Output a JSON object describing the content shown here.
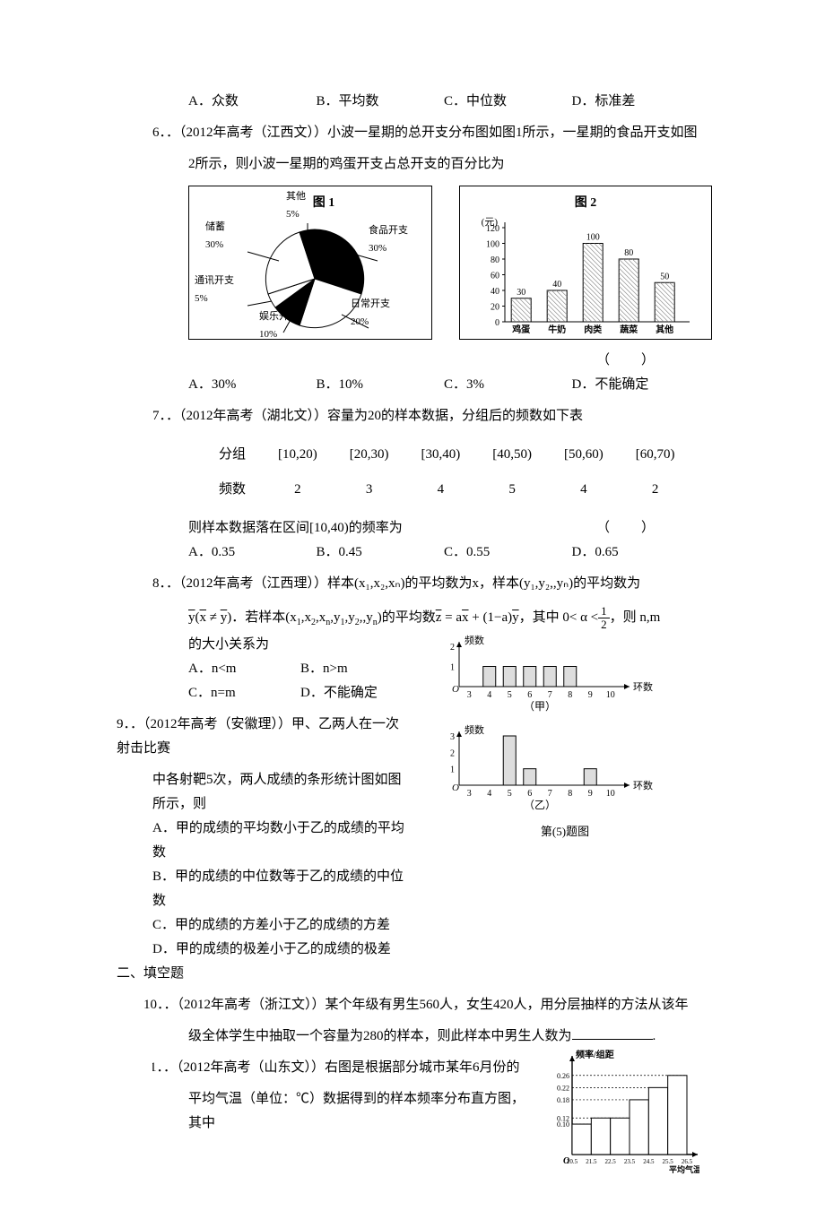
{
  "q5_opts": {
    "A": "A．众数",
    "B": "B．平均数",
    "C": "C．中位数",
    "D": "D．标准差"
  },
  "q6": {
    "num": "6．",
    "src": "．（2012年高考（江西文））小波一星期的总开支分布图如图1所示，一星期的食品开支如图",
    "line2": "2所示，则小波一星期的鸡蛋开支占总开支的百分比为",
    "pie": {
      "title": "图 1",
      "labels": {
        "储蓄": "储蓄\n30%",
        "其他": "其他\n5%",
        "食品": "食品开支\n30%",
        "日常": "日常开支\n20%",
        "娱乐": "娱乐开支\n10%",
        "通讯": "通讯开支\n5%"
      },
      "colors": {
        "储蓄": "#ffffff",
        "其他": "#000000",
        "食品": "#000000",
        "日常": "#ffffff",
        "娱乐": "#000000",
        "通讯": "#ffffff"
      }
    },
    "bar": {
      "title": "图 2",
      "ylabel": "(元)",
      "ymax": 120,
      "ystep": 20,
      "cats": [
        "鸡蛋",
        "牛奶",
        "肉类",
        "蔬菜",
        "其他"
      ],
      "vals": [
        30,
        40,
        100,
        80,
        50
      ],
      "bar_color": "#ffffff",
      "hatch": true
    },
    "opts": {
      "A": "A．30%",
      "B": "B．10%",
      "C": "C．3%",
      "D": "D．不能确定"
    }
  },
  "q7": {
    "num": "7．",
    "src": "．（2012年高考（湖北文））容量为20的样本数据，分组后的频数如下表",
    "table": {
      "h1": "分组",
      "h2": "频数",
      "groups": [
        "[10,20)",
        "[20,30)",
        "[30,40)",
        "[40,50)",
        "[50,60)",
        "[60,70)"
      ],
      "freqs": [
        "2",
        "3",
        "4",
        "5",
        "4",
        "2"
      ]
    },
    "tail": "则样本数据落在区间[10,40)的频率为",
    "opts": {
      "A": "A．0.35",
      "B": "B．0.45",
      "C": "C．0.55",
      "D": "D．0.65"
    }
  },
  "q8": {
    "num": "8．",
    "src": "．（2012年高考（江西理））样本(x₁,x₂,xₙ)的平均数为x，样本(y₁,y₂,,yₙ)的平均数为",
    "line3": "的大小关系为",
    "opts": {
      "A": "A．n<m",
      "B": "B．n>m",
      "C": "C．n=m",
      "D": "D．不能确定"
    }
  },
  "q9": {
    "num": "9．",
    "src": "．（2012年高考（安徽理））甲、乙两人在一次射击比赛",
    "line2": "中各射靶5次，两人成绩的条形统计图如图所示，则",
    "opts": {
      "A": "A．甲的成绩的平均数小于乙的成绩的平均数",
      "B": "B．甲的成绩的中位数等于乙的成绩的中位数",
      "C": "C．甲的成绩的方差小于乙的成绩的方差",
      "D": "D．甲的成绩的极差小于乙的成绩的极差"
    },
    "chart": {
      "ylabel": "频数",
      "xlabel": "环数",
      "cap1": "（甲）",
      "cap2": "（乙）",
      "caption": "第(5)题图",
      "jia_x": [
        4,
        5,
        6,
        7,
        8
      ],
      "jia_y": [
        1,
        1,
        1,
        1,
        1
      ],
      "yi_x": [
        5,
        6,
        9
      ],
      "yi_y": [
        3,
        1,
        1
      ]
    }
  },
  "sec2": "二、填空题",
  "q10": {
    "num": "10．",
    "src": "．（2012年高考（浙江文））某个年级有男生560人，女生420人，用分层抽样的方法从该年",
    "line2": "级全体学生中抽取一个容量为280的样本，则此样本中男生人数为",
    "tail": "."
  },
  "q11": {
    "num": "11．",
    "src": "．（2012年高考（山东文））右图是根据部分城市某年6月份的",
    "line2": "平均气温（单位：℃）数据得到的样本频率分布直方图，其中",
    "hist": {
      "ylabel": "频率/组距",
      "xlabel": "平均气温/℃",
      "yticks": [
        "0.26",
        "0.22",
        "0.18",
        "0.12",
        "0.10"
      ],
      "xticks": [
        "20.5",
        "21.5",
        "22.5",
        "23.5",
        "24.5",
        "25.5",
        "26.5"
      ],
      "heights": [
        0.1,
        0.12,
        0.12,
        0.18,
        0.22,
        0.26
      ]
    }
  }
}
